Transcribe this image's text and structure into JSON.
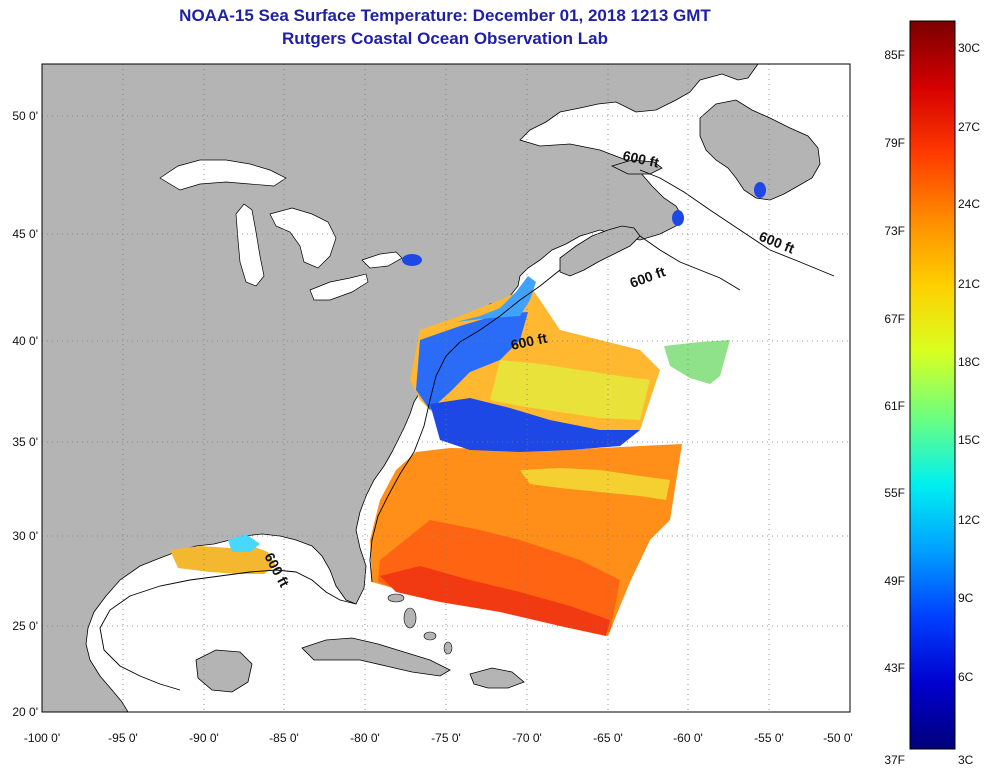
{
  "header": {
    "title": "NOAA-15 Sea Surface Temperature:  December 01, 2018 1213 GMT",
    "subtitle": "Rutgers Coastal Ocean Observation Lab"
  },
  "map": {
    "lon_labels": [
      "-100 0'",
      "-95 0'",
      "-90 0'",
      "-85 0'",
      "-80 0'",
      "-75 0'",
      "-70 0'",
      "-65 0'",
      "-60 0'",
      "-55 0'",
      "-50 0'"
    ],
    "lat_labels": [
      "50 0'",
      "45 0'",
      "40 0'",
      "35 0'",
      "30 0'",
      "25 0'",
      "20 0'"
    ],
    "contour_labels": [
      "600 ft",
      "600 ft",
      "600 ft",
      "600 ft",
      "600 ft"
    ],
    "colors": {
      "land": "#b4b4b4",
      "ocean": "#ffffff",
      "grid": "#7a7a7a"
    }
  },
  "colorbar": {
    "fahrenheit_labels": [
      "85F",
      "79F",
      "73F",
      "67F",
      "61F",
      "55F",
      "49F",
      "43F",
      "37F"
    ],
    "celsius_labels": [
      "30C",
      "27C",
      "24C",
      "21C",
      "18C",
      "15C",
      "12C",
      "9C",
      "6C",
      "3C"
    ],
    "gradient_colors": [
      "#7a0000",
      "#d40000",
      "#ff3a00",
      "#ff8c00",
      "#ffd000",
      "#d8ff20",
      "#6cff80",
      "#00f0f0",
      "#00a0ff",
      "#0040ff",
      "#0000d0",
      "#00007a"
    ]
  }
}
